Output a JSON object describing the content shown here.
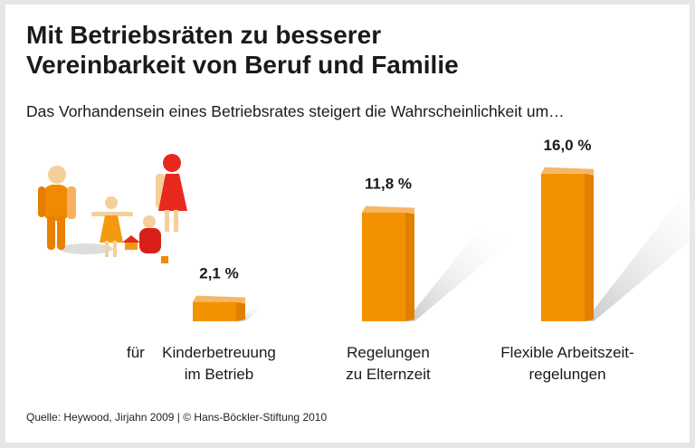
{
  "title": "Mit Betriebsräten zu besserer\nVereinbarkeit von Beruf und Familie",
  "subtitle": "Das Vorhandensein eines Betriebsrates steigert die Wahrscheinlichkeit um…",
  "prefix_label": "für",
  "source": "Quelle: Heywood, Jirjahn 2009 | © Hans-Böckler-Stiftung 2010",
  "chart_data": {
    "type": "bar",
    "categories": [
      [
        "Kinderbetreuung",
        "im Betrieb"
      ],
      [
        "Regelungen",
        "zu Elternzeit"
      ],
      [
        "Flexible Arbeitszeit-",
        "regelungen"
      ]
    ],
    "values": [
      2.1,
      11.8,
      16.0
    ],
    "data_labels": [
      "2,1 %",
      "11,8 %",
      "16,0 %"
    ],
    "unit": "%",
    "colors": {
      "front": "#f39200",
      "side": "#e07f00",
      "top": "#f7b666",
      "shadow": "#cfcfcf"
    }
  }
}
